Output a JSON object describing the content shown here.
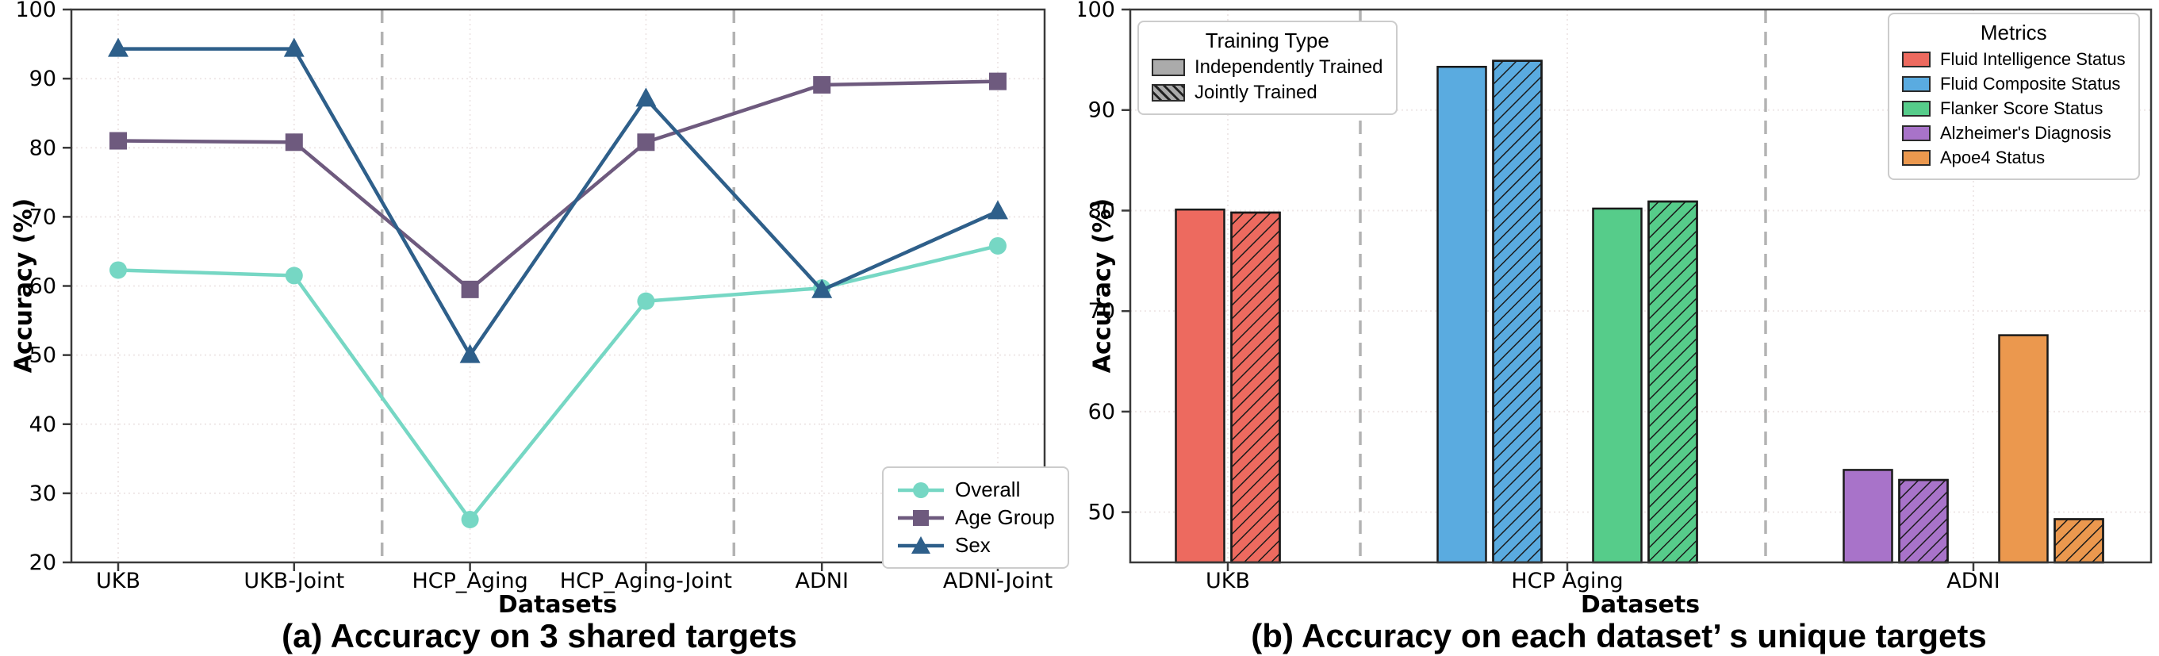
{
  "chart_data": [
    {
      "type": "line",
      "title": "(a) Accuracy on 3 shared targets",
      "xlabel": "Datasets",
      "ylabel": "Accuracy (%)",
      "categories": [
        "UKB",
        "UKB-Joint",
        "HCP_Aging",
        "HCP_Aging-Joint",
        "ADNI",
        "ADNI-Joint"
      ],
      "ylim": [
        20,
        100
      ],
      "yticks": [
        20,
        30,
        40,
        50,
        60,
        70,
        80,
        90,
        100
      ],
      "grid": true,
      "separator_after_index": [
        1,
        3
      ],
      "legend_position": "lower right",
      "series": [
        {
          "name": "Overall",
          "color": "#76d7c4",
          "marker": "circle",
          "values": [
            62.3,
            61.5,
            26.2,
            57.8,
            59.7,
            65.8
          ]
        },
        {
          "name": "Age Group",
          "color": "#6e5a7e",
          "marker": "square",
          "values": [
            81.0,
            80.8,
            59.5,
            80.8,
            89.1,
            89.6
          ]
        },
        {
          "name": "Sex",
          "color": "#2e5f8a",
          "marker": "triangle",
          "values": [
            94.3,
            94.3,
            50.0,
            87.1,
            59.4,
            70.8
          ]
        }
      ]
    },
    {
      "type": "bar",
      "title": "(b) Accuracy on each dataset’ s unique targets",
      "xlabel": "Datasets",
      "ylabel": "Accuracy (%)",
      "categories": [
        "UKB",
        "HCP Aging",
        "ADNI"
      ],
      "ylim": [
        45,
        100
      ],
      "yticks": [
        50,
        60,
        70,
        80,
        90,
        100
      ],
      "grid": true,
      "training_legend": {
        "title": "Training Type",
        "swatch_color": "#ababab",
        "items": [
          {
            "label": "Independently Trained",
            "hatched": false
          },
          {
            "label": "Jointly Trained",
            "hatched": true
          }
        ]
      },
      "metrics_legend": {
        "title": "Metrics",
        "items": [
          {
            "label": "Fluid Intelligence Status",
            "color": "#ed6a5f"
          },
          {
            "label": "Fluid Composite Status",
            "color": "#5aabe0"
          },
          {
            "label": "Flanker Score Status",
            "color": "#56cc8a"
          },
          {
            "label": "Alzheimer's Diagnosis",
            "color": "#a873c9"
          },
          {
            "label": "Apoe4 Status",
            "color": "#eb984e"
          }
        ]
      },
      "groups": [
        {
          "dataset": "UKB",
          "bars": [
            {
              "metric": "Fluid Intelligence Status",
              "training": "Independently Trained",
              "hatched": false,
              "color": "#ed6a5f",
              "value": 80.1
            },
            {
              "metric": "Fluid Intelligence Status",
              "training": "Jointly Trained",
              "hatched": true,
              "color": "#ed6a5f",
              "value": 79.8
            }
          ]
        },
        {
          "dataset": "HCP Aging",
          "bars": [
            {
              "metric": "Fluid Composite Status",
              "training": "Independently Trained",
              "hatched": false,
              "color": "#5aabe0",
              "value": 94.3
            },
            {
              "metric": "Fluid Composite Status",
              "training": "Jointly Trained",
              "hatched": true,
              "color": "#5aabe0",
              "value": 94.9
            },
            {
              "metric": "Flanker Score Status",
              "training": "Independently Trained",
              "hatched": false,
              "color": "#56cc8a",
              "value": 80.2
            },
            {
              "metric": "Flanker Score Status",
              "training": "Jointly Trained",
              "hatched": true,
              "color": "#56cc8a",
              "value": 80.9
            }
          ]
        },
        {
          "dataset": "ADNI",
          "bars": [
            {
              "metric": "Alzheimer's Diagnosis",
              "training": "Independently Trained",
              "hatched": false,
              "color": "#a873c9",
              "value": 54.2
            },
            {
              "metric": "Alzheimer's Diagnosis",
              "training": "Jointly Trained",
              "hatched": true,
              "color": "#a873c9",
              "value": 53.2
            },
            {
              "metric": "Apoe4 Status",
              "training": "Independently Trained",
              "hatched": false,
              "color": "#eb984e",
              "value": 67.6
            },
            {
              "metric": "Apoe4 Status",
              "training": "Jointly Trained",
              "hatched": true,
              "color": "#eb984e",
              "value": 49.3
            }
          ]
        }
      ]
    }
  ]
}
